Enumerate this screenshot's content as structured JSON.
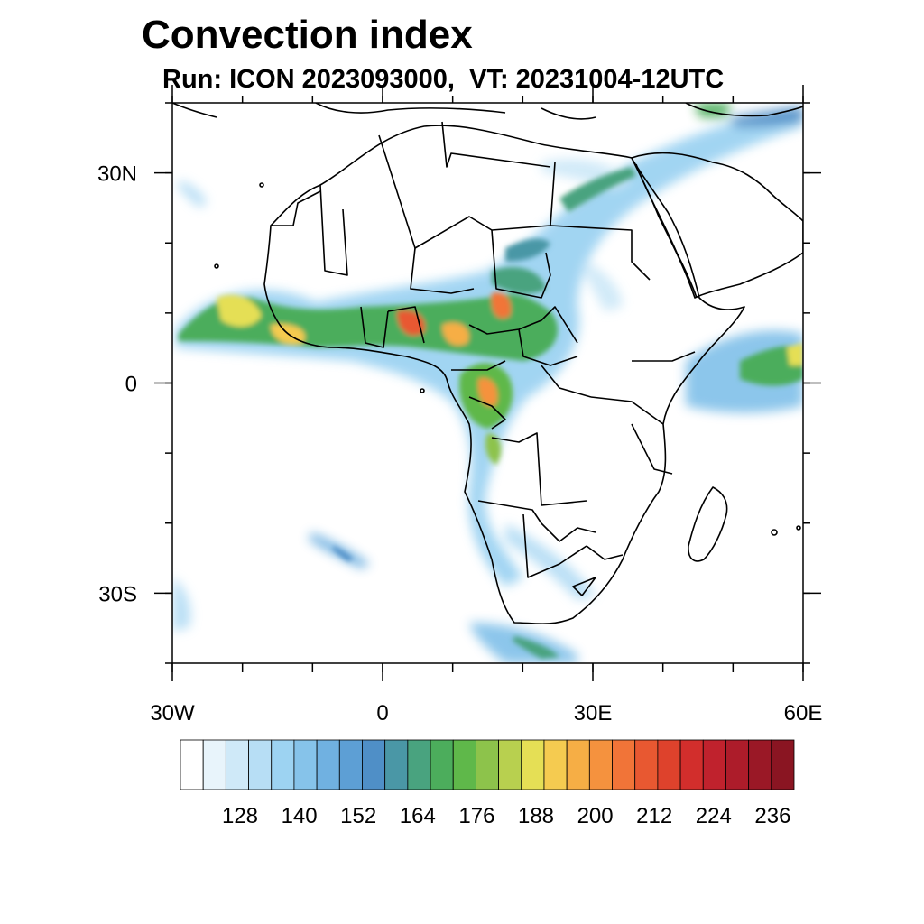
{
  "title": "Convection index",
  "subtitle": "Run: ICON 2023093000,  VT: 20231004-12UTC",
  "map": {
    "projection": "cylindrical equidistant",
    "lon_range": [
      -30,
      60
    ],
    "lat_range": [
      -40,
      40
    ],
    "lat_ticks": [
      {
        "lat": 30,
        "label": "30N"
      },
      {
        "lat": 0,
        "label": "0"
      },
      {
        "lat": -30,
        "label": "30S"
      }
    ],
    "lon_ticks": [
      {
        "lon": -30,
        "label": "30W"
      },
      {
        "lon": 0,
        "label": "0"
      },
      {
        "lon": 30,
        "label": "30E"
      },
      {
        "lon": 60,
        "label": "60E"
      }
    ]
  },
  "colorbar": {
    "labels": [
      "128",
      "140",
      "152",
      "164",
      "176",
      "188",
      "200",
      "212",
      "224",
      "236"
    ],
    "colors": [
      "#ffffff",
      "#e8f4fb",
      "#cfe9f8",
      "#b7def5",
      "#9dd3f2",
      "#86c3ea",
      "#70b1e1",
      "#5d9fd5",
      "#4f8fc7",
      "#4a97a6",
      "#49a37f",
      "#4cad5c",
      "#5fb84a",
      "#8dc34b",
      "#b8d04f",
      "#e5df55",
      "#f5cb50",
      "#f6ae45",
      "#f5923e",
      "#f17438",
      "#e85831",
      "#de422c",
      "#d22e2c",
      "#c0222d",
      "#ad1c2a",
      "#9a1826",
      "#8a1522"
    ]
  }
}
